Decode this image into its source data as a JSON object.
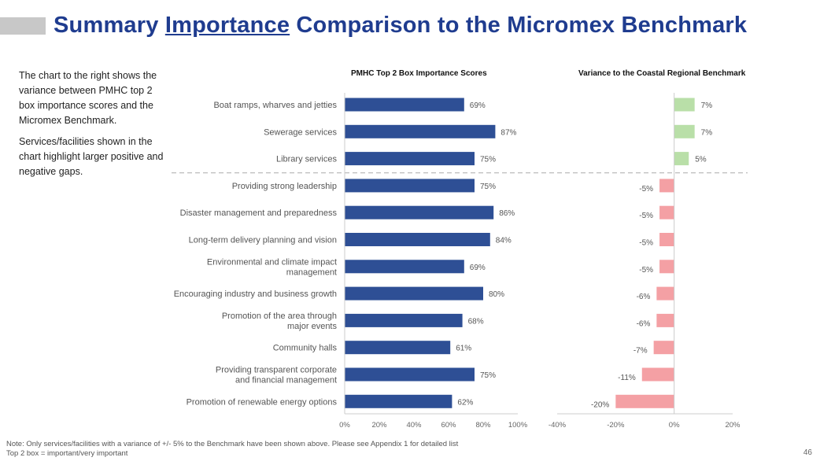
{
  "header": {
    "title_pre": "Summary ",
    "title_underlined": "Importance",
    "title_post": " Comparison to the Micromex Benchmark"
  },
  "intro": {
    "para1": "The chart to the right shows the variance between PMHC top 2 box importance scores and the Micromex Benchmark.",
    "para2": "Services/facilities shown in the chart highlight larger positive and negative gaps."
  },
  "footnote": {
    "line1": "Note: Only services/facilities with a variance of +/- 5% to the Benchmark have been shown above. Please see Appendix 1 for detailed list",
    "line2": "Top 2 box = important/very important"
  },
  "page_number": "46",
  "colors": {
    "title": "#1f3c8f",
    "bar_blue": "#2e4f95",
    "positive": "#b9dfa8",
    "negative": "#f4a0a4"
  },
  "chart_data": [
    {
      "type": "bar",
      "orientation": "horizontal",
      "title": "PMHC Top 2 Box Importance Scores",
      "categories": [
        "Boat ramps, wharves and jetties",
        "Sewerage services",
        "Library services",
        "Providing strong leadership",
        "Disaster management and preparedness",
        "Long-term delivery planning and vision",
        "Environmental and climate impact management",
        "Encouraging industry and business growth",
        "Promotion of the area through major events",
        "Community halls",
        "Providing transparent corporate and financial management",
        "Promotion of renewable energy options"
      ],
      "values": [
        69,
        87,
        75,
        75,
        86,
        84,
        69,
        80,
        68,
        61,
        75,
        62
      ],
      "value_labels": [
        "69%",
        "87%",
        "75%",
        "75%",
        "86%",
        "84%",
        "69%",
        "80%",
        "68%",
        "61%",
        "75%",
        "62%"
      ],
      "xlim": [
        0,
        100
      ],
      "xticks": [
        "0%",
        "20%",
        "40%",
        "60%",
        "80%",
        "100%"
      ],
      "grid": false
    },
    {
      "type": "bar",
      "orientation": "horizontal",
      "title": "Variance to the Coastal Regional Benchmark",
      "values": [
        7,
        7,
        5,
        -5,
        -5,
        -5,
        -5,
        -6,
        -6,
        -7,
        -11,
        -20
      ],
      "value_labels": [
        "7%",
        "7%",
        "5%",
        "-5%",
        "-5%",
        "-5%",
        "-5%",
        "-6%",
        "-6%",
        "-7%",
        "-11%",
        "-20%"
      ],
      "xlim": [
        -40,
        20
      ],
      "xticks": [
        "-40%",
        "-20%",
        "0%",
        "20%"
      ],
      "grid": false
    }
  ]
}
